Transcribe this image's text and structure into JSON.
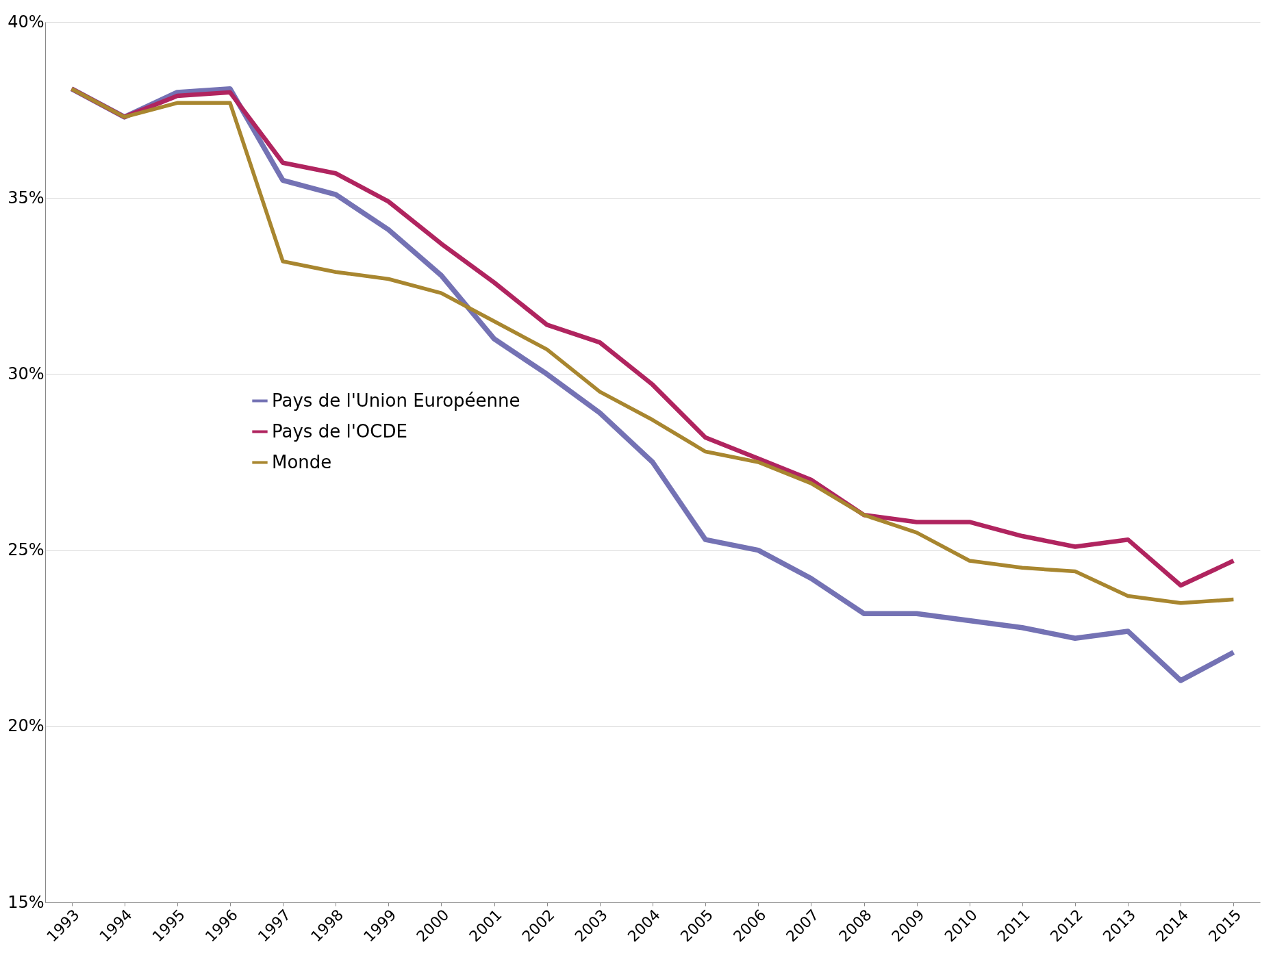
{
  "chart_data": {
    "type": "line",
    "categories": [
      "1993",
      "1994",
      "1995",
      "1996",
      "1997",
      "1998",
      "1999",
      "2000",
      "2001",
      "2002",
      "2003",
      "2004",
      "2005",
      "2006",
      "2007",
      "2008",
      "2009",
      "2010",
      "2011",
      "2012",
      "2013",
      "2014",
      "2015"
    ],
    "series": [
      {
        "name": "Pays de l'Union Européenne",
        "color": "#7472b4",
        "values": [
          38.1,
          37.3,
          38.0,
          38.1,
          35.5,
          35.1,
          34.1,
          32.8,
          31.0,
          30.0,
          28.9,
          27.5,
          25.3,
          25.0,
          24.2,
          23.2,
          23.2,
          23.0,
          22.8,
          22.5,
          22.7,
          21.3,
          22.1
        ]
      },
      {
        "name": "Pays de l'OCDE",
        "color": "#b0245f",
        "values": [
          38.1,
          37.3,
          37.9,
          38.0,
          36.0,
          35.7,
          34.9,
          33.7,
          32.6,
          31.4,
          30.9,
          29.7,
          28.2,
          27.6,
          27.0,
          26.0,
          25.8,
          25.8,
          25.4,
          25.1,
          25.3,
          24.0,
          24.7
        ]
      },
      {
        "name": "Monde",
        "color": "#a8862f",
        "values": [
          38.1,
          37.3,
          37.7,
          37.7,
          33.2,
          32.9,
          32.7,
          32.3,
          31.5,
          30.7,
          29.5,
          28.7,
          27.8,
          27.5,
          26.9,
          26.0,
          25.5,
          24.7,
          24.5,
          24.4,
          23.7,
          23.5,
          23.6
        ]
      }
    ],
    "ylim": [
      15,
      40
    ],
    "yticks": [
      {
        "value": 15,
        "label": "15%"
      },
      {
        "value": 20,
        "label": "20%"
      },
      {
        "value": 25,
        "label": "25%"
      },
      {
        "value": 30,
        "label": "30%"
      },
      {
        "value": 35,
        "label": "35%"
      },
      {
        "value": 40,
        "label": "40%"
      }
    ],
    "grid": "y",
    "legend": "left",
    "marker": "none",
    "line_style": "solid"
  }
}
